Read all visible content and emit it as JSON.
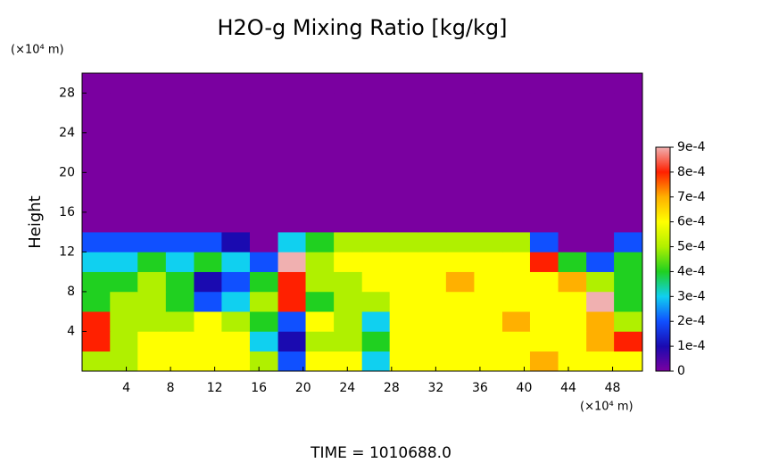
{
  "chart_data": {
    "type": "heatmap",
    "title": "H2O-g Mixing Ratio [kg/kg]",
    "y_label": "Height",
    "x_unit": "(×10⁴ m)",
    "y_unit": "(×10⁴ m)",
    "annotation": "TIME = 1010688.0",
    "xlim": [
      0,
      50.7
    ],
    "ylim": [
      0,
      30
    ],
    "xticks": [
      4,
      8,
      12,
      16,
      20,
      24,
      28,
      32,
      36,
      40,
      44,
      48
    ],
    "yticks": [
      4,
      8,
      12,
      16,
      20,
      24,
      28
    ],
    "zlim": [
      0,
      0.0009
    ],
    "zticks": [
      {
        "value": 0,
        "label": "0"
      },
      {
        "value": 0.0001,
        "label": "1e-4"
      },
      {
        "value": 0.0002,
        "label": "2e-4"
      },
      {
        "value": 0.0003,
        "label": "3e-4"
      },
      {
        "value": 0.0004,
        "label": "4e-4"
      },
      {
        "value": 0.0005,
        "label": "5e-4"
      },
      {
        "value": 0.0006,
        "label": "6e-4"
      },
      {
        "value": 0.0007,
        "label": "7e-4"
      },
      {
        "value": 0.0008,
        "label": "8e-4"
      },
      {
        "value": 0.0009,
        "label": "9e-4"
      }
    ],
    "colorscale": [
      "#7a00a0",
      "#1a0ab0",
      "#1050ff",
      "#10d0f0",
      "#20d020",
      "#b0f000",
      "#ffff00",
      "#ffb000",
      "#ff2000",
      "#f0b0b0"
    ],
    "x": [
      1.3,
      3.8,
      6.3,
      8.9,
      11.4,
      13.9,
      16.5,
      19.0,
      21.5,
      24.1,
      26.6,
      29.1,
      31.7,
      34.2,
      36.8,
      39.3,
      41.8,
      44.4,
      46.9,
      49.4
    ],
    "y": [
      1,
      3,
      5,
      7,
      9,
      11,
      13,
      15,
      17,
      19,
      21,
      23,
      25,
      27,
      29
    ],
    "z": [
      [
        0.0005,
        0.0005,
        0.0006,
        0.0006,
        0.0006,
        0.0006,
        0.0005,
        0.0002,
        0.0006,
        0.0006,
        0.0003,
        0.0006,
        0.0006,
        0.0006,
        0.0006,
        0.0006,
        0.0007,
        0.0006,
        0.0006,
        0.0006
      ],
      [
        0.0008,
        0.0005,
        0.0006,
        0.0006,
        0.0006,
        0.0006,
        0.0003,
        0.0001,
        0.0005,
        0.0005,
        0.0004,
        0.0006,
        0.0006,
        0.0006,
        0.0006,
        0.0006,
        0.0006,
        0.0006,
        0.0007,
        0.0008
      ],
      [
        0.0008,
        0.0005,
        0.0005,
        0.0005,
        0.0006,
        0.0005,
        0.0004,
        0.0002,
        0.0006,
        0.0005,
        0.0003,
        0.0006,
        0.0006,
        0.0006,
        0.0006,
        0.0007,
        0.0006,
        0.0006,
        0.0007,
        0.0005
      ],
      [
        0.0004,
        0.0005,
        0.0005,
        0.0004,
        0.0002,
        0.0003,
        0.0005,
        0.0008,
        0.0004,
        0.0005,
        0.0005,
        0.0006,
        0.0006,
        0.0006,
        0.0006,
        0.0006,
        0.0006,
        0.0006,
        0.0009,
        0.0004
      ],
      [
        0.0004,
        0.0004,
        0.0005,
        0.0004,
        0.0001,
        0.0002,
        0.0004,
        0.0008,
        0.0005,
        0.0005,
        0.0006,
        0.0006,
        0.0006,
        0.0007,
        0.0006,
        0.0006,
        0.0006,
        0.0007,
        0.0005,
        0.0004
      ],
      [
        0.0003,
        0.0003,
        0.0004,
        0.0003,
        0.0004,
        0.0003,
        0.0002,
        0.0009,
        0.0005,
        0.0006,
        0.0006,
        0.0006,
        0.0006,
        0.0006,
        0.0006,
        0.0006,
        0.0008,
        0.0004,
        0.0002,
        0.0004
      ],
      [
        0.0002,
        0.0002,
        0.0002,
        0.0002,
        0.0002,
        0.0001,
        0,
        0.0003,
        0.0004,
        0.0005,
        0.0005,
        0.0005,
        0.0005,
        0.0005,
        0.0005,
        0.0005,
        0.0002,
        0,
        0,
        0.0002
      ],
      [
        0,
        0,
        0,
        0,
        0,
        0,
        0,
        0,
        0,
        0,
        0,
        0,
        0,
        0,
        0,
        0,
        0,
        0,
        0,
        0
      ],
      [
        0,
        0,
        0,
        0,
        0,
        0,
        0,
        0,
        0,
        0,
        0,
        0,
        0,
        0,
        0,
        0,
        0,
        0,
        0,
        0
      ],
      [
        0,
        0,
        0,
        0,
        0,
        0,
        0,
        0,
        0,
        0,
        0,
        0,
        0,
        0,
        0,
        0,
        0,
        0,
        0,
        0
      ],
      [
        0,
        0,
        0,
        0,
        0,
        0,
        0,
        0,
        0,
        0,
        0,
        0,
        0,
        0,
        0,
        0,
        0,
        0,
        0,
        0
      ],
      [
        0,
        0,
        0,
        0,
        0,
        0,
        0,
        0,
        0,
        0,
        0,
        0,
        0,
        0,
        0,
        0,
        0,
        0,
        0,
        0
      ],
      [
        0,
        0,
        0,
        0,
        0,
        0,
        0,
        0,
        0,
        0,
        0,
        0,
        0,
        0,
        0,
        0,
        0,
        0,
        0,
        0
      ],
      [
        0,
        0,
        0,
        0,
        0,
        0,
        0,
        0,
        0,
        0,
        0,
        0,
        0,
        0,
        0,
        0,
        0,
        0,
        0,
        0
      ],
      [
        0,
        0,
        0,
        0,
        0,
        0,
        0,
        0,
        0,
        0,
        0,
        0,
        0,
        0,
        0,
        0,
        0,
        0,
        0,
        0
      ]
    ]
  }
}
